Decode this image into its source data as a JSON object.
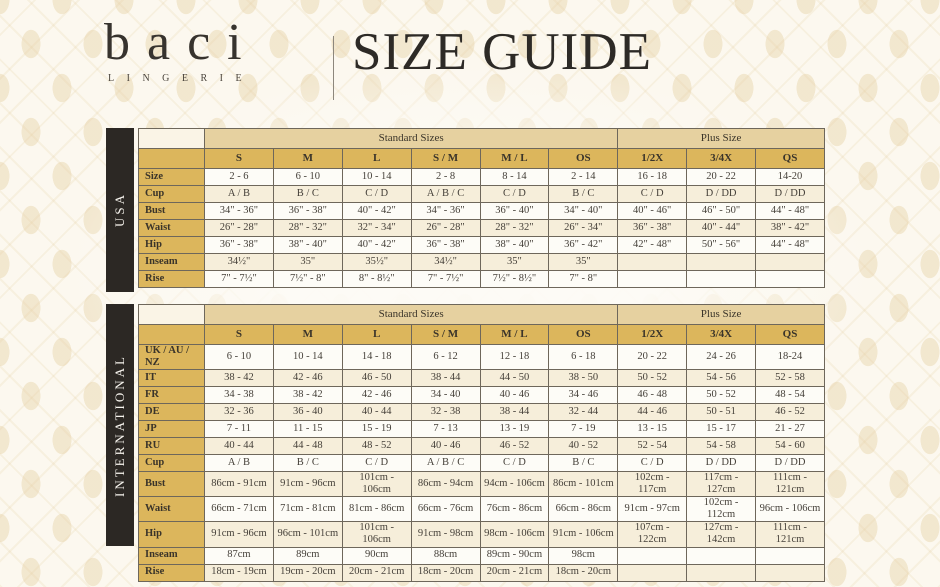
{
  "brand": {
    "logo_text": "baci",
    "logo_sub": "LINGERIE"
  },
  "page_title": "SIZE GUIDE",
  "colors": {
    "gold_header": "#dcb65c",
    "gold_band": "#e6d1a0",
    "sidebar_black": "#2c2824",
    "background_cream": "#fcf8ef",
    "text_dark": "#3a342a"
  },
  "tables": [
    {
      "region_label": "USA",
      "group_headers": [
        {
          "label": "",
          "span": 1
        },
        {
          "label": "Standard Sizes",
          "span": 6
        },
        {
          "label": "Plus Size",
          "span": 3
        }
      ],
      "columns": [
        "S",
        "M",
        "L",
        "S / M",
        "M / L",
        "OS",
        "1/2X",
        "3/4X",
        "QS"
      ],
      "rows": [
        {
          "label": "Size",
          "values": [
            "2 - 6",
            "6 - 10",
            "10 - 14",
            "2 - 8",
            "8 - 14",
            "2 - 14",
            "16 - 18",
            "20 - 22",
            "14-20"
          ]
        },
        {
          "label": "Cup",
          "values": [
            "A / B",
            "B / C",
            "C / D",
            "A / B / C",
            "C / D",
            "B / C",
            "C / D",
            "D / DD",
            "D / DD"
          ]
        },
        {
          "label": "Bust",
          "values": [
            "34\" - 36\"",
            "36\" - 38\"",
            "40\" - 42\"",
            "34\" - 36\"",
            "36\" - 40\"",
            "34\" - 40\"",
            "40\" - 46\"",
            "46\" - 50\"",
            "44\" - 48\""
          ]
        },
        {
          "label": "Waist",
          "values": [
            "26\" - 28\"",
            "28\" - 32\"",
            "32\" - 34\"",
            "26\" - 28\"",
            "28\" - 32\"",
            "26\" - 34\"",
            "36\" - 38\"",
            "40\" - 44\"",
            "38\" - 42\""
          ]
        },
        {
          "label": "Hip",
          "values": [
            "36\" - 38\"",
            "38\" - 40\"",
            "40\" - 42\"",
            "36\" - 38\"",
            "38\" - 40\"",
            "36\" - 42\"",
            "42\" - 48\"",
            "50\" - 56\"",
            "44\" - 48\""
          ]
        },
        {
          "label": "Inseam",
          "values": [
            "34½\"",
            "35\"",
            "35½\"",
            "34½\"",
            "35\"",
            "35\"",
            "",
            "",
            ""
          ]
        },
        {
          "label": "Rise",
          "values": [
            "7\" - 7½\"",
            "7½\" - 8\"",
            "8\" - 8½\"",
            "7\" - 7½\"",
            "7½\" - 8½\"",
            "7\" - 8\"",
            "",
            "",
            ""
          ]
        }
      ]
    },
    {
      "region_label": "INTERNATIONAL",
      "group_headers": [
        {
          "label": "",
          "span": 1
        },
        {
          "label": "Standard Sizes",
          "span": 6
        },
        {
          "label": "Plus Size",
          "span": 3
        }
      ],
      "columns": [
        "S",
        "M",
        "L",
        "S / M",
        "M / L",
        "OS",
        "1/2X",
        "3/4X",
        "QS"
      ],
      "rows": [
        {
          "label": "UK / AU / NZ",
          "values": [
            "6 - 10",
            "10 - 14",
            "14 - 18",
            "6 - 12",
            "12 - 18",
            "6 - 18",
            "20 - 22",
            "24 - 26",
            "18-24"
          ]
        },
        {
          "label": "IT",
          "values": [
            "38 - 42",
            "42 - 46",
            "46 - 50",
            "38 - 44",
            "44 - 50",
            "38 - 50",
            "50 - 52",
            "54 - 56",
            "52 - 58"
          ]
        },
        {
          "label": "FR",
          "values": [
            "34 - 38",
            "38 - 42",
            "42 - 46",
            "34 - 40",
            "40 - 46",
            "34 - 46",
            "46 - 48",
            "50 - 52",
            "48 - 54"
          ]
        },
        {
          "label": "DE",
          "values": [
            "32 - 36",
            "36 - 40",
            "40 - 44",
            "32 - 38",
            "38 - 44",
            "32 - 44",
            "44 - 46",
            "50 - 51",
            "46 - 52"
          ]
        },
        {
          "label": "JP",
          "values": [
            "7 - 11",
            "11 - 15",
            "15 - 19",
            "7 - 13",
            "13 - 19",
            "7 - 19",
            "13 - 15",
            "15 - 17",
            "21 - 27"
          ]
        },
        {
          "label": "RU",
          "values": [
            "40 - 44",
            "44 - 48",
            "48 - 52",
            "40 - 46",
            "46 - 52",
            "40 - 52",
            "52 - 54",
            "54 - 58",
            "54 - 60"
          ]
        },
        {
          "label": "Cup",
          "values": [
            "A / B",
            "B / C",
            "C / D",
            "A / B / C",
            "C / D",
            "B / C",
            "C / D",
            "D / DD",
            "D / DD"
          ]
        },
        {
          "label": "Bust",
          "values": [
            "86cm - 91cm",
            "91cm - 96cm",
            "101cm - 106cm",
            "86cm - 94cm",
            "94cm - 106cm",
            "86cm - 101cm",
            "102cm - 117cm",
            "117cm - 127cm",
            "111cm - 121cm"
          ]
        },
        {
          "label": "Waist",
          "values": [
            "66cm - 71cm",
            "71cm - 81cm",
            "81cm - 86cm",
            "66cm - 76cm",
            "76cm - 86cm",
            "66cm - 86cm",
            "91cm - 97cm",
            "102cm - 112cm",
            "96cm - 106cm"
          ]
        },
        {
          "label": "Hip",
          "values": [
            "91cm - 96cm",
            "96cm - 101cm",
            "101cm - 106cm",
            "91cm - 98cm",
            "98cm - 106cm",
            "91cm - 106cm",
            "107cm - 122cm",
            "127cm - 142cm",
            "111cm - 121cm"
          ]
        },
        {
          "label": "Inseam",
          "values": [
            "87cm",
            "89cm",
            "90cm",
            "88cm",
            "89cm - 90cm",
            "98cm",
            "",
            "",
            ""
          ]
        },
        {
          "label": "Rise",
          "values": [
            "18cm - 19cm",
            "19cm - 20cm",
            "20cm - 21cm",
            "18cm - 20cm",
            "20cm - 21cm",
            "18cm - 20cm",
            "",
            "",
            ""
          ]
        }
      ]
    }
  ]
}
